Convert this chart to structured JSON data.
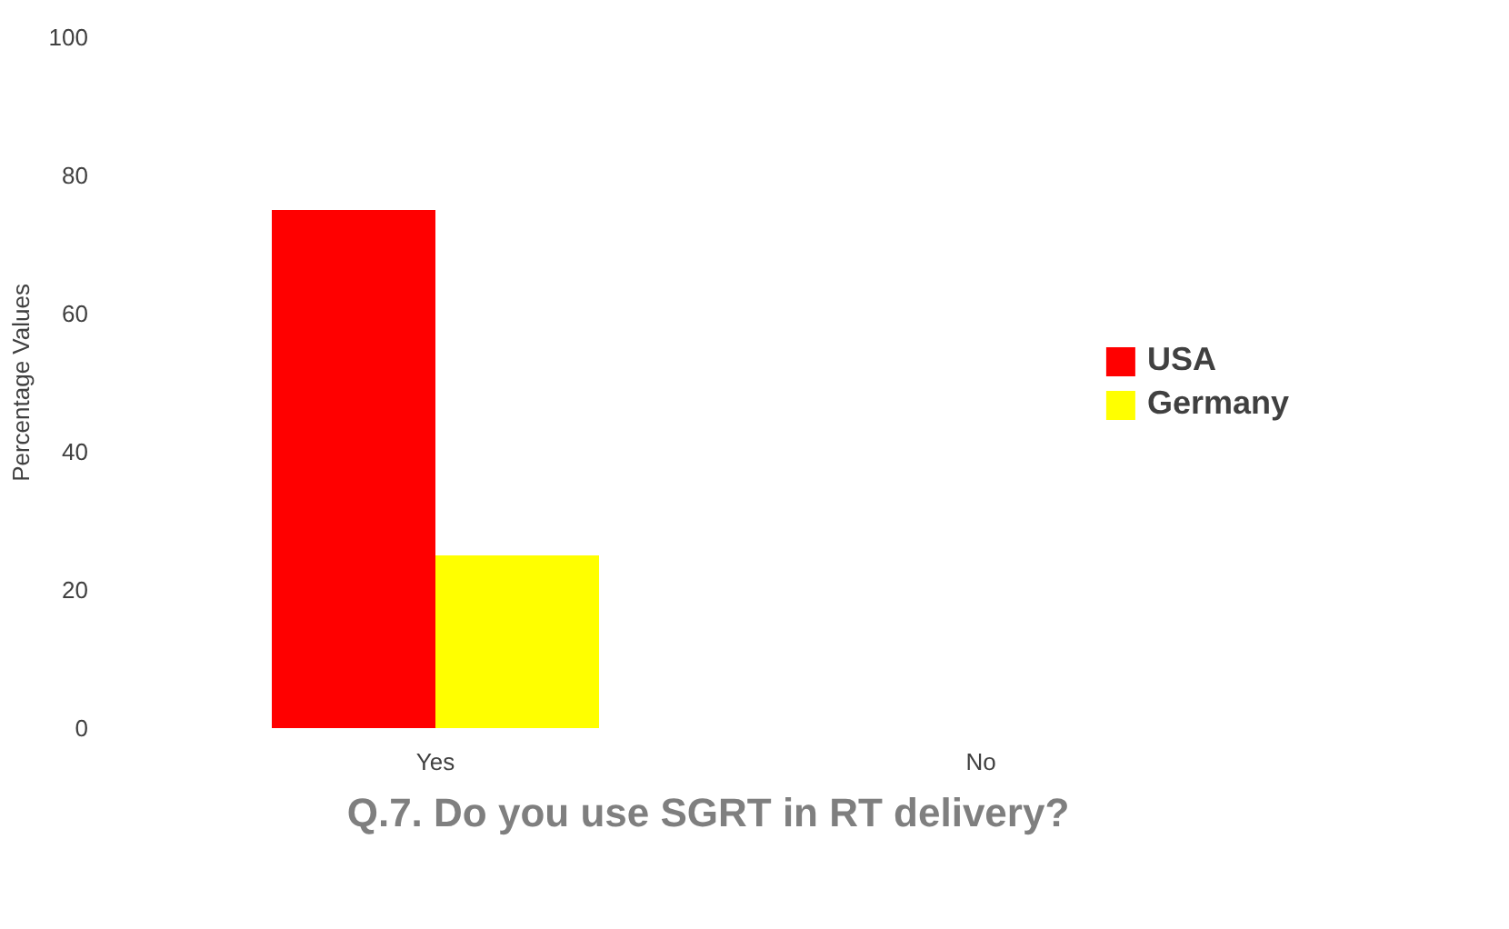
{
  "chart_data": {
    "type": "bar",
    "xlabel": "Q.7. Do you use SGRT in RT delivery?",
    "ylabel": "Percentage Values",
    "categories": [
      "Yes",
      "No"
    ],
    "series": [
      {
        "name": "USA",
        "color": "#ff0000",
        "values": [
          75,
          0
        ]
      },
      {
        "name": "Germany",
        "color": "#ffff00",
        "values": [
          25,
          0
        ]
      }
    ],
    "ylim": [
      0,
      100
    ],
    "yticks": [
      0,
      20,
      40,
      60,
      80,
      100
    ],
    "grid": false,
    "legend": "right"
  }
}
